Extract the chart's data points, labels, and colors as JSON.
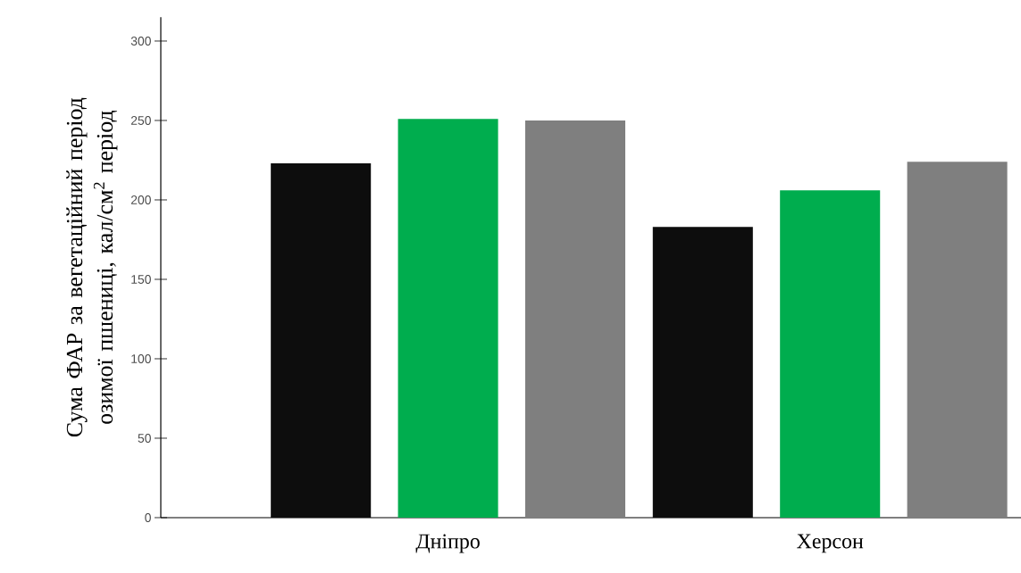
{
  "chart_data": {
    "type": "bar",
    "ylabel": "Сума ФАР за вегетаційний період озимої пшениці, кал/см$^{2}$ період",
    "categories": [
      "Дніпро",
      "Херсон"
    ],
    "series": [
      {
        "color": "#0d0d0d",
        "values": [
          223,
          183
        ]
      },
      {
        "color": "#00ad4e",
        "values": [
          251,
          206
        ]
      },
      {
        "color": "#7f7f7f",
        "values": [
          250,
          224
        ]
      }
    ],
    "ylim": [
      0,
      315
    ],
    "yticks": [
      0,
      50,
      100,
      150,
      200,
      250,
      300
    ]
  }
}
